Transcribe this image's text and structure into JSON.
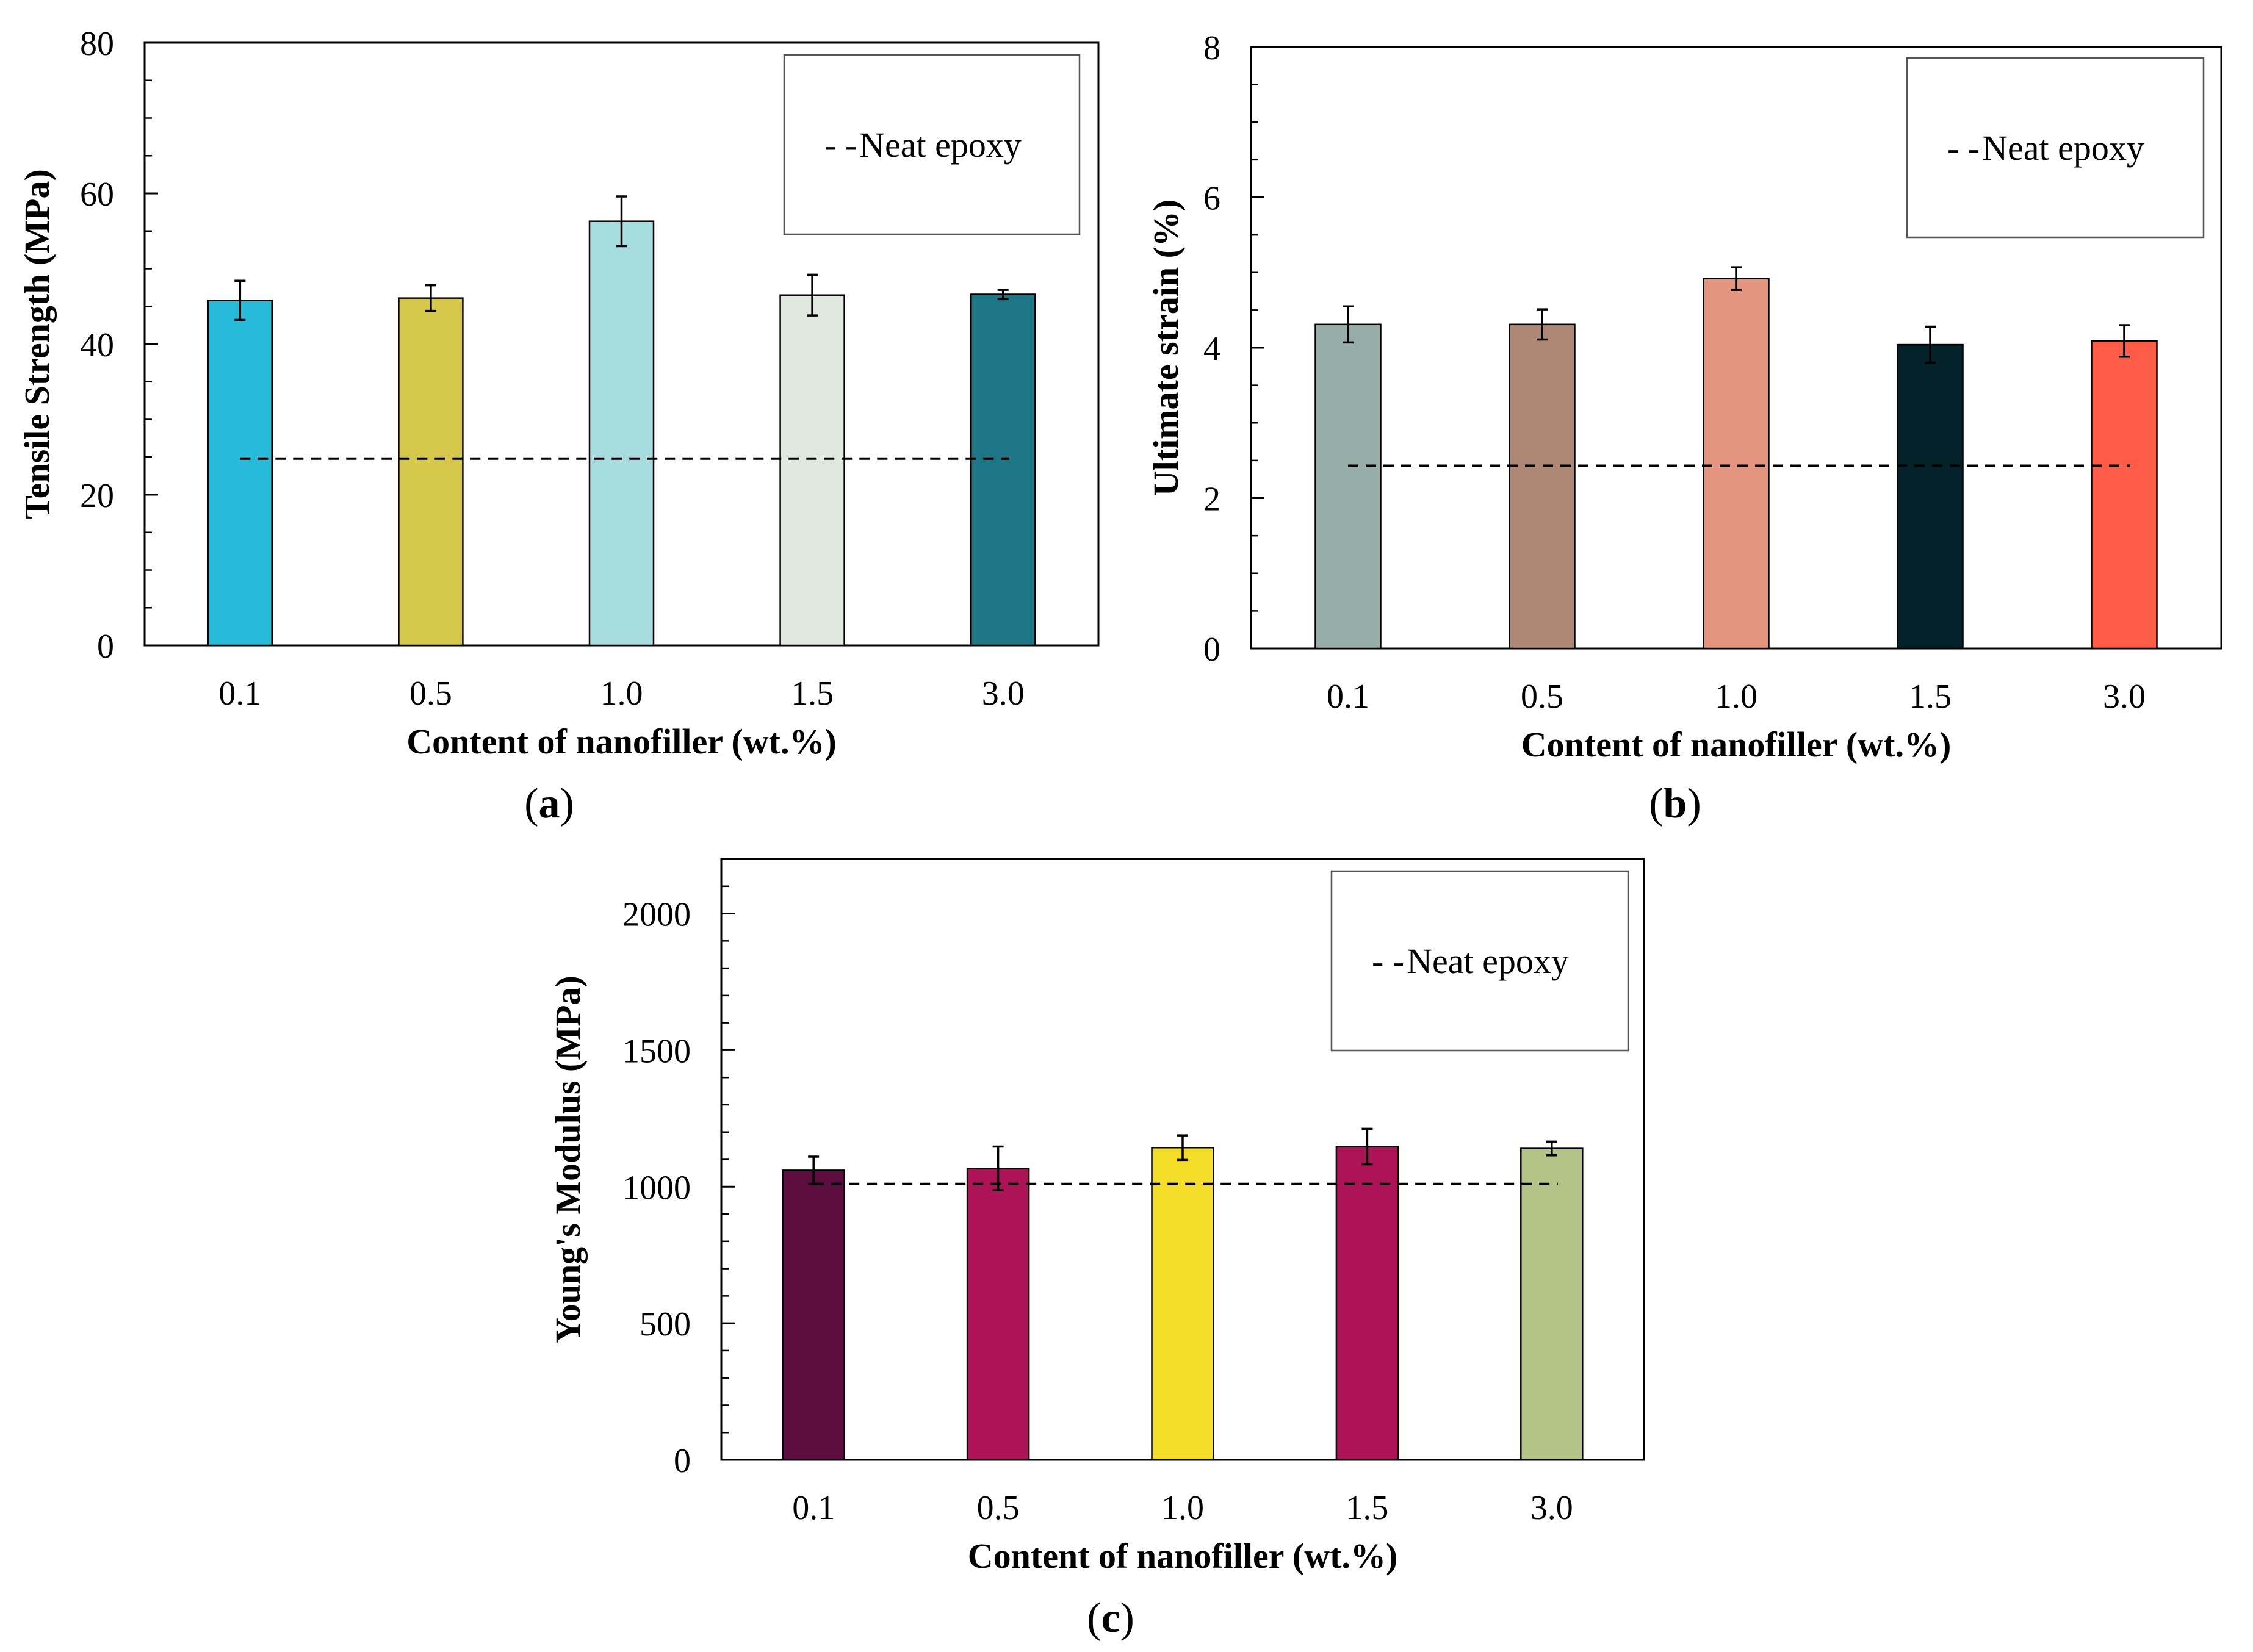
{
  "figure": {
    "panels": [
      "a",
      "b",
      "c"
    ]
  },
  "colors": {
    "axis": "#000000",
    "error_bar": "#000000",
    "reference_line": "#000000"
  },
  "chart_data": [
    {
      "id": "a",
      "type": "bar",
      "panel_label_open": "(",
      "panel_label_letter": "a",
      "panel_label_close": ")",
      "categories": [
        "0.1",
        "0.5",
        "1.0",
        "1.5",
        "3.0"
      ],
      "values": [
        45.8,
        46.1,
        56.3,
        46.5,
        46.6
      ],
      "errors": [
        2.6,
        1.7,
        3.3,
        2.7,
        0.6
      ],
      "colors": [
        "#26BBD8",
        "#D6C84A",
        "#A8DDE0",
        "#E0E8E0",
        "#1C7685"
      ],
      "reference_line": {
        "label": "Neat epoxy",
        "value": 24.8
      },
      "legend_prefix": "- -",
      "xlabel": "Content of nanofiller (wt.%)",
      "ylabel": "Tensile Strength (MPa)",
      "ylim": [
        0,
        80
      ],
      "yticks": [
        0,
        20,
        40,
        60,
        80
      ],
      "minor_step": 5,
      "legend": "top-right"
    },
    {
      "id": "b",
      "type": "bar",
      "panel_label_open": "(",
      "panel_label_letter": "b",
      "panel_label_close": ")",
      "categories": [
        "0.1",
        "0.5",
        "1.0",
        "1.5",
        "3.0"
      ],
      "values": [
        4.31,
        4.31,
        4.92,
        4.04,
        4.09
      ],
      "errors": [
        0.24,
        0.2,
        0.15,
        0.24,
        0.21
      ],
      "colors": [
        "#97ADA8",
        "#AE8874",
        "#E39580",
        "#03222A",
        "#FF5C47"
      ],
      "reference_line": {
        "label": "Neat epoxy",
        "value": 2.43
      },
      "legend_prefix": "- -",
      "xlabel": "Content of nanofiller (wt.%)",
      "ylabel": "Ultimate strain (%)",
      "ylim": [
        0,
        8
      ],
      "yticks": [
        0,
        2,
        4,
        6,
        8
      ],
      "minor_step": 0.5,
      "legend": "top-right"
    },
    {
      "id": "c",
      "type": "bar",
      "panel_label_open": "(",
      "panel_label_letter": "c",
      "panel_label_close": ")",
      "categories": [
        "0.1",
        "0.5",
        "1.0",
        "1.5",
        "3.0"
      ],
      "values": [
        1060,
        1067,
        1143,
        1147,
        1140
      ],
      "errors": [
        50,
        80,
        45,
        65,
        25
      ],
      "colors": [
        "#5A0D3E",
        "#AD1457",
        "#F4DD26",
        "#AD1457",
        "#B4C489"
      ],
      "reference_line": {
        "label": "Neat epoxy",
        "value": 1010
      },
      "legend_prefix": "- -",
      "xlabel": "Content of nanofiller (wt.%)",
      "ylabel": "Young's Modulus (MPa)",
      "ylim": [
        0,
        2200
      ],
      "yticks": [
        0,
        500,
        1000,
        1500,
        2000
      ],
      "minor_step": 100,
      "legend": "top-right"
    }
  ]
}
